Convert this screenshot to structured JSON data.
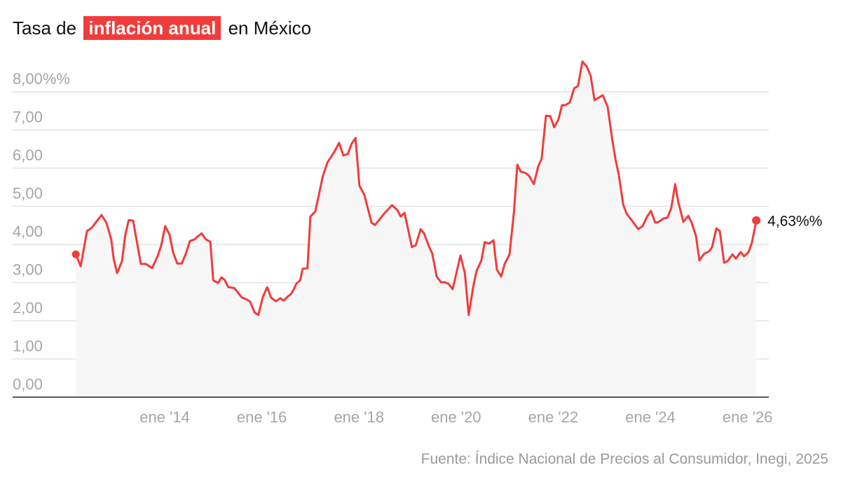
{
  "title": {
    "before": "Tasa de",
    "highlight": "inflación anual",
    "after": "en México"
  },
  "source": "Fuente: Índice Nacional de Precios al Consumidor, Inegi, 2025",
  "colors": {
    "line": "#f23b3b",
    "fill": "#f7f7f7",
    "grid": "#e2e2e2",
    "axis": "#222222"
  },
  "chart_data": {
    "type": "line",
    "title": "Tasa de inflación anual en México",
    "xlabel": "",
    "ylabel": "",
    "ylim": [
      0,
      8
    ],
    "grid": true,
    "y_ticks": [
      {
        "value": 0,
        "label": "0,00"
      },
      {
        "value": 1,
        "label": "1,00"
      },
      {
        "value": 2,
        "label": "2,00"
      },
      {
        "value": 3,
        "label": "3,00"
      },
      {
        "value": 4,
        "label": "4,00"
      },
      {
        "value": 5,
        "label": "5,00"
      },
      {
        "value": 6,
        "label": "6,00"
      },
      {
        "value": 7,
        "label": "7,00"
      },
      {
        "value": 8,
        "label": "8,00%%"
      }
    ],
    "x_ticks": [
      {
        "value": 2014,
        "label": "ene '14"
      },
      {
        "value": 2016,
        "label": "ene '16"
      },
      {
        "value": 2018,
        "label": "ene '18"
      },
      {
        "value": 2020,
        "label": "ene '20"
      },
      {
        "value": 2022,
        "label": "ene '22"
      },
      {
        "value": 2024,
        "label": "ene '24"
      },
      {
        "value": 2026,
        "label": "ene '26"
      }
    ],
    "end_label": "4,63%%",
    "series": [
      {
        "name": "Inflación anual",
        "points": [
          [
            2012.17,
            3.74
          ],
          [
            2012.27,
            3.43
          ],
          [
            2012.4,
            4.35
          ],
          [
            2012.5,
            4.44
          ],
          [
            2012.6,
            4.61
          ],
          [
            2012.7,
            4.77
          ],
          [
            2012.8,
            4.57
          ],
          [
            2012.9,
            4.13
          ],
          [
            2012.95,
            3.62
          ],
          [
            2013.02,
            3.25
          ],
          [
            2013.12,
            3.56
          ],
          [
            2013.19,
            4.26
          ],
          [
            2013.26,
            4.64
          ],
          [
            2013.35,
            4.62
          ],
          [
            2013.44,
            3.98
          ],
          [
            2013.51,
            3.49
          ],
          [
            2013.61,
            3.49
          ],
          [
            2013.74,
            3.38
          ],
          [
            2013.86,
            3.71
          ],
          [
            2013.93,
            3.98
          ],
          [
            2014.01,
            4.48
          ],
          [
            2014.1,
            4.26
          ],
          [
            2014.17,
            3.8
          ],
          [
            2014.26,
            3.5
          ],
          [
            2014.35,
            3.5
          ],
          [
            2014.43,
            3.74
          ],
          [
            2014.52,
            4.09
          ],
          [
            2014.61,
            4.13
          ],
          [
            2014.76,
            4.29
          ],
          [
            2014.85,
            4.13
          ],
          [
            2014.94,
            4.07
          ],
          [
            2015.0,
            3.06
          ],
          [
            2015.1,
            2.99
          ],
          [
            2015.17,
            3.14
          ],
          [
            2015.24,
            3.06
          ],
          [
            2015.31,
            2.88
          ],
          [
            2015.43,
            2.86
          ],
          [
            2015.59,
            2.61
          ],
          [
            2015.7,
            2.55
          ],
          [
            2015.76,
            2.5
          ],
          [
            2015.85,
            2.22
          ],
          [
            2015.93,
            2.15
          ],
          [
            2016.02,
            2.62
          ],
          [
            2016.11,
            2.88
          ],
          [
            2016.19,
            2.61
          ],
          [
            2016.29,
            2.51
          ],
          [
            2016.38,
            2.59
          ],
          [
            2016.45,
            2.53
          ],
          [
            2016.54,
            2.64
          ],
          [
            2016.6,
            2.7
          ],
          [
            2016.66,
            2.83
          ],
          [
            2016.71,
            2.97
          ],
          [
            2016.79,
            3.06
          ],
          [
            2016.84,
            3.36
          ],
          [
            2016.94,
            3.38
          ],
          [
            2017.0,
            4.73
          ],
          [
            2017.1,
            4.86
          ],
          [
            2017.17,
            5.27
          ],
          [
            2017.25,
            5.76
          ],
          [
            2017.35,
            6.15
          ],
          [
            2017.49,
            6.42
          ],
          [
            2017.59,
            6.66
          ],
          [
            2017.68,
            6.33
          ],
          [
            2017.77,
            6.37
          ],
          [
            2017.85,
            6.64
          ],
          [
            2017.93,
            6.79
          ],
          [
            2018.01,
            5.54
          ],
          [
            2018.11,
            5.3
          ],
          [
            2018.26,
            4.57
          ],
          [
            2018.33,
            4.51
          ],
          [
            2018.52,
            4.81
          ],
          [
            2018.68,
            5.03
          ],
          [
            2018.79,
            4.9
          ],
          [
            2018.86,
            4.73
          ],
          [
            2018.94,
            4.83
          ],
          [
            2019.09,
            3.93
          ],
          [
            2019.17,
            3.98
          ],
          [
            2019.27,
            4.4
          ],
          [
            2019.34,
            4.29
          ],
          [
            2019.44,
            3.95
          ],
          [
            2019.51,
            3.76
          ],
          [
            2019.6,
            3.16
          ],
          [
            2019.69,
            3.01
          ],
          [
            2019.77,
            3.01
          ],
          [
            2019.84,
            2.97
          ],
          [
            2019.93,
            2.83
          ],
          [
            2020.09,
            3.71
          ],
          [
            2020.18,
            3.25
          ],
          [
            2020.26,
            2.15
          ],
          [
            2020.35,
            2.88
          ],
          [
            2020.42,
            3.3
          ],
          [
            2020.52,
            3.58
          ],
          [
            2020.59,
            4.06
          ],
          [
            2020.68,
            4.02
          ],
          [
            2020.77,
            4.11
          ],
          [
            2020.84,
            3.34
          ],
          [
            2020.93,
            3.16
          ],
          [
            2021.0,
            3.49
          ],
          [
            2021.1,
            3.74
          ],
          [
            2021.19,
            4.84
          ],
          [
            2021.26,
            6.09
          ],
          [
            2021.33,
            5.91
          ],
          [
            2021.43,
            5.87
          ],
          [
            2021.5,
            5.8
          ],
          [
            2021.6,
            5.58
          ],
          [
            2021.69,
            6.04
          ],
          [
            2021.76,
            6.24
          ],
          [
            2021.85,
            7.37
          ],
          [
            2021.94,
            7.36
          ],
          [
            2022.02,
            7.07
          ],
          [
            2022.11,
            7.28
          ],
          [
            2022.18,
            7.65
          ],
          [
            2022.25,
            7.65
          ],
          [
            2022.34,
            7.72
          ],
          [
            2022.43,
            8.09
          ],
          [
            2022.51,
            8.15
          ],
          [
            2022.6,
            8.79
          ],
          [
            2022.69,
            8.66
          ],
          [
            2022.77,
            8.42
          ],
          [
            2022.85,
            7.78
          ],
          [
            2023.02,
            7.91
          ],
          [
            2023.12,
            7.61
          ],
          [
            2023.21,
            6.79
          ],
          [
            2023.28,
            6.24
          ],
          [
            2023.35,
            5.82
          ],
          [
            2023.44,
            5.05
          ],
          [
            2023.51,
            4.81
          ],
          [
            2023.6,
            4.66
          ],
          [
            2023.75,
            4.4
          ],
          [
            2023.84,
            4.48
          ],
          [
            2023.93,
            4.72
          ],
          [
            2024.01,
            4.88
          ],
          [
            2024.1,
            4.57
          ],
          [
            2024.17,
            4.59
          ],
          [
            2024.27,
            4.68
          ],
          [
            2024.35,
            4.7
          ],
          [
            2024.43,
            4.95
          ],
          [
            2024.51,
            5.58
          ],
          [
            2024.58,
            5.08
          ],
          [
            2024.68,
            4.59
          ],
          [
            2024.78,
            4.75
          ],
          [
            2024.85,
            4.57
          ],
          [
            2024.94,
            4.22
          ],
          [
            2025.01,
            3.58
          ],
          [
            2025.11,
            3.76
          ],
          [
            2025.21,
            3.82
          ],
          [
            2025.27,
            3.93
          ],
          [
            2025.36,
            4.42
          ],
          [
            2025.43,
            4.35
          ],
          [
            2025.52,
            3.52
          ],
          [
            2025.59,
            3.56
          ],
          [
            2025.69,
            3.74
          ],
          [
            2025.76,
            3.63
          ],
          [
            2025.86,
            3.8
          ],
          [
            2025.93,
            3.69
          ],
          [
            2026.02,
            3.8
          ],
          [
            2026.09,
            4.04
          ],
          [
            2026.18,
            4.63
          ]
        ]
      }
    ]
  }
}
